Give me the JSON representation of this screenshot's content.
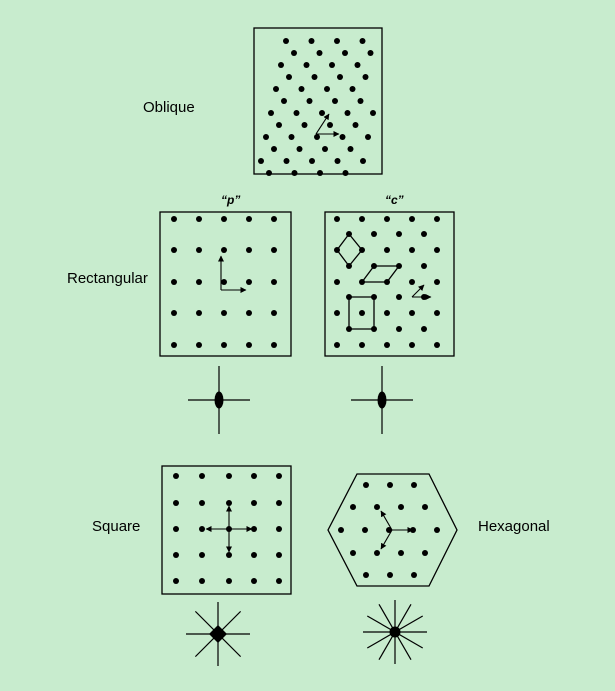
{
  "labels": {
    "oblique": "Oblique",
    "rectangular": "Rectangular",
    "square": "Square",
    "hexagonal": "Hexagonal",
    "primitive": "“p”",
    "centered": "“c”"
  },
  "colors": {
    "background": "#c8ecce",
    "ink": "#000000"
  }
}
